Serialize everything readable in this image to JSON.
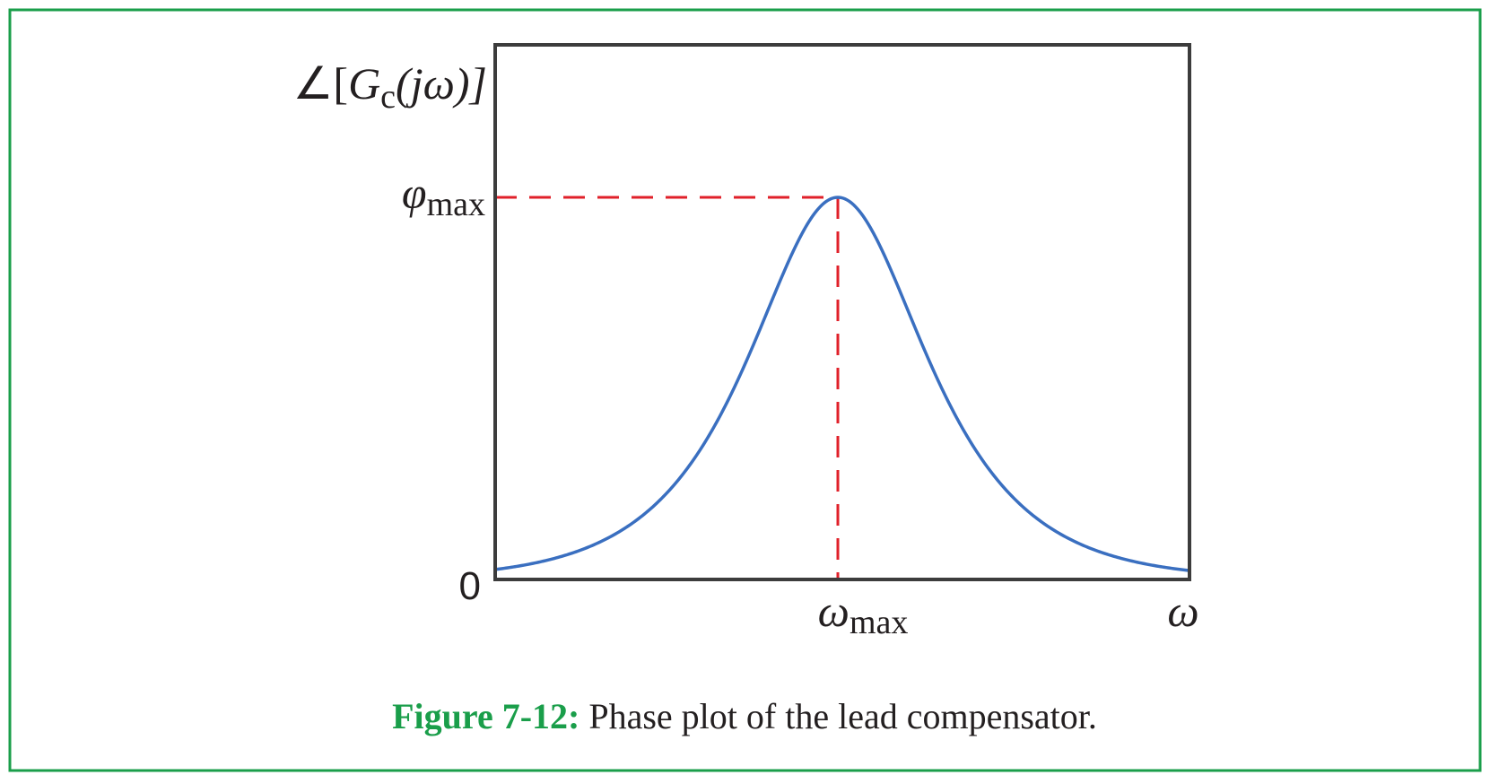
{
  "axis_label": {
    "open": "∠[",
    "symbol": "G",
    "subscript": "c",
    "close": "(jω)]"
  },
  "y_marks": {
    "peak": {
      "symbol": "φ",
      "subscript": "max"
    },
    "zero": "0"
  },
  "x_marks": {
    "peak": {
      "symbol": "ω",
      "subscript": "max"
    },
    "axis": "ω"
  },
  "caption": {
    "label": "Figure 7-12:",
    "text": "Phase plot of the lead compensator."
  }
}
